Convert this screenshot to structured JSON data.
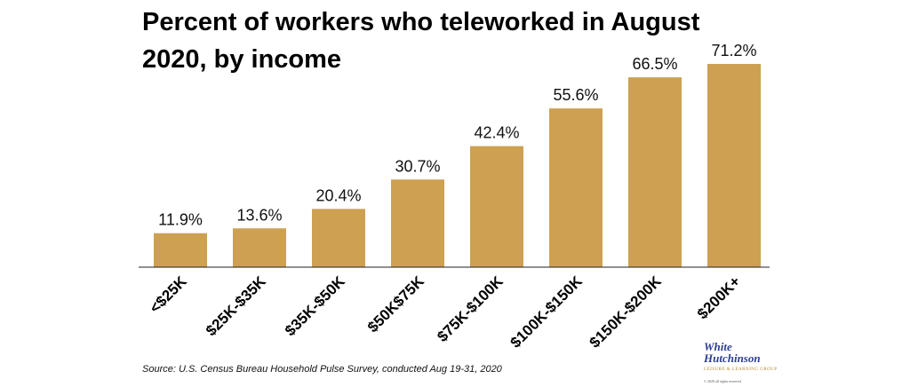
{
  "chart_data": {
    "type": "bar",
    "title": "Percent of workers who teleworked in August 2020, by income",
    "title_lines": [
      "Percent of workers who teleworked in August",
      "2020, by income"
    ],
    "categories": [
      "<$25K",
      "$25K-$35K",
      "$35K-$50K",
      "$50K$75K",
      "$75K-$100K",
      "$100K-$150K",
      "$150K-$200K",
      "$200K+"
    ],
    "values": [
      11.9,
      13.6,
      20.4,
      30.7,
      42.4,
      55.6,
      66.5,
      71.2
    ],
    "value_labels": [
      "11.9%",
      "13.6%",
      "20.4%",
      "30.7%",
      "42.4%",
      "55.6%",
      "66.5%",
      "71.2%"
    ],
    "ylim": [
      0,
      71.2
    ],
    "xlabel": "",
    "ylabel": "",
    "grid": false,
    "bar_color": "#cda052"
  },
  "source": "Source: U.S. Census Bureau Household Pulse Survey, conducted Aug 19-31, 2020",
  "logo": {
    "line1": "White",
    "line2": "Hutchinson",
    "line3": "LEISURE & LEARNING GROUP",
    "line4": "© 2020 all rights reserved"
  }
}
